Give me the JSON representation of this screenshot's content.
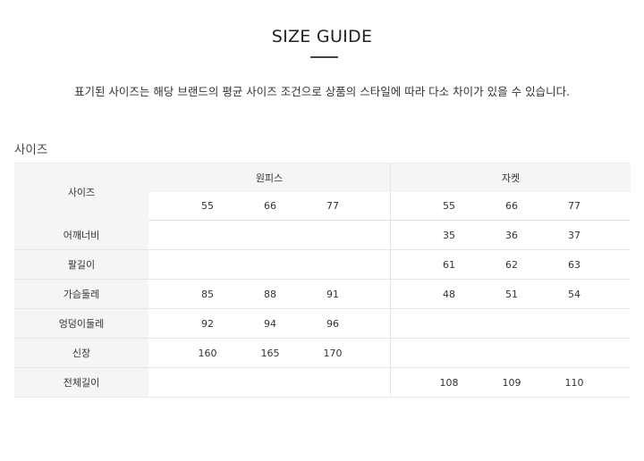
{
  "title": "SIZE GUIDE",
  "notice": "표기된 사이즈는 해당 브랜드의 평균 사이즈 조건으로 상품의 스타일에 따라 다소 차이가 있을 수 있습니다.",
  "section_label": "사이즈",
  "table": {
    "corner": "사이즈",
    "groups": [
      {
        "name": "원피스",
        "sizes": [
          "55",
          "66",
          "77"
        ]
      },
      {
        "name": "자켓",
        "sizes": [
          "55",
          "66",
          "77"
        ]
      }
    ],
    "rows": [
      {
        "label": "어깨너비",
        "g1": [
          "",
          "",
          ""
        ],
        "g2": [
          "35",
          "36",
          "37"
        ]
      },
      {
        "label": "팔길이",
        "g1": [
          "",
          "",
          ""
        ],
        "g2": [
          "61",
          "62",
          "63"
        ]
      },
      {
        "label": "가슴둘레",
        "g1": [
          "85",
          "88",
          "91"
        ],
        "g2": [
          "48",
          "51",
          "54"
        ]
      },
      {
        "label": "엉덩이둘레",
        "g1": [
          "92",
          "94",
          "96"
        ],
        "g2": [
          "",
          "",
          ""
        ]
      },
      {
        "label": "신장",
        "g1": [
          "160",
          "165",
          "170"
        ],
        "g2": [
          "",
          "",
          ""
        ]
      },
      {
        "label": "전체길이",
        "g1": [
          "",
          "",
          ""
        ],
        "g2": [
          "108",
          "109",
          "110"
        ]
      }
    ]
  }
}
